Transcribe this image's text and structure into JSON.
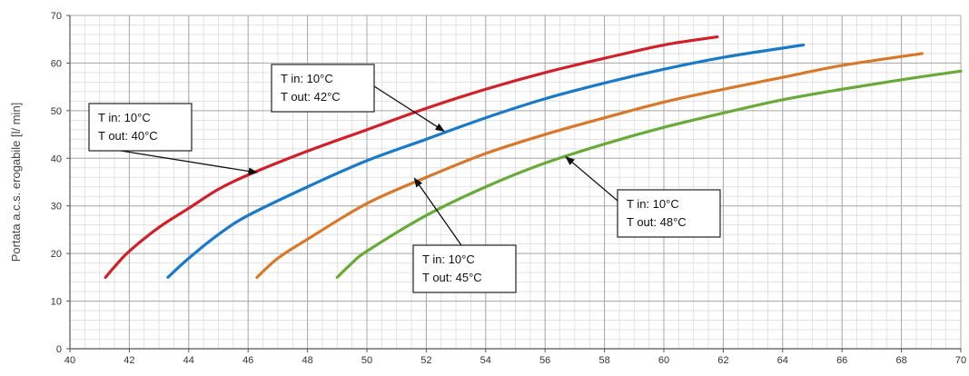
{
  "chart_data": {
    "type": "line",
    "title": "",
    "xlabel": "",
    "ylabel": "Portata a.c.s. erogabile [l/ min]",
    "xlim": [
      40,
      70
    ],
    "ylim": [
      0,
      70
    ],
    "x_ticks": [
      "40",
      "42",
      "44",
      "46",
      "48",
      "50",
      "52",
      "54",
      "56",
      "58",
      "60",
      "62",
      "64",
      "66",
      "68",
      "70"
    ],
    "y_ticks": [
      "0",
      "10",
      "20",
      "30",
      "40",
      "50",
      "60",
      "70"
    ],
    "x_minor_step": 0.5,
    "y_minor_step": 2,
    "grid": true,
    "legend": "none",
    "series": [
      {
        "color": "#d0202a",
        "x": [
          41.2,
          41.5,
          42,
          43,
          44,
          45,
          46,
          48,
          50,
          52,
          54,
          56,
          58,
          60,
          61.8
        ],
        "y": [
          15,
          17.2,
          20.5,
          25.5,
          29.5,
          33.5,
          36.5,
          41.5,
          46,
          50.5,
          54.5,
          58,
          61,
          63.8,
          65.5
        ]
      },
      {
        "color": "#1a7ac8",
        "x": [
          43.3,
          44,
          45,
          46,
          48,
          50,
          52,
          54,
          56,
          58,
          60,
          62,
          64.7
        ],
        "y": [
          15,
          19,
          24,
          28,
          34,
          39.5,
          44,
          48.5,
          52.5,
          55.8,
          58.7,
          61.2,
          63.8
        ]
      },
      {
        "color": "#d7782a",
        "x": [
          46.3,
          47,
          48,
          50,
          52,
          54,
          56,
          58,
          60,
          62,
          64,
          66,
          68.7
        ],
        "y": [
          15,
          19,
          23,
          30.5,
          36,
          41,
          45,
          48.5,
          51.8,
          54.5,
          57,
          59.5,
          62
        ]
      },
      {
        "color": "#6aaa3a",
        "x": [
          49,
          49.5,
          50,
          52,
          54,
          56,
          58,
          60,
          62,
          64,
          66,
          68,
          70
        ],
        "y": [
          15,
          18,
          20.5,
          28,
          34,
          39,
          43,
          46.5,
          49.5,
          52.3,
          54.5,
          56.5,
          58.3
        ]
      }
    ],
    "annotations": [
      {
        "line1": "T in: 10°C",
        "line2": "T out: 40°C",
        "arrow_to": [
          46.3,
          37
        ]
      },
      {
        "line1": "T in: 10°C",
        "line2": "T out: 42°C",
        "arrow_to": [
          52.6,
          45.7
        ]
      },
      {
        "line1": "T in: 10°C",
        "line2": "T out: 45°C",
        "arrow_to": [
          51.6,
          35.8
        ]
      },
      {
        "line1": "T in: 10°C",
        "line2": "T out: 48°C",
        "arrow_to": [
          56.7,
          40.3
        ]
      }
    ]
  }
}
